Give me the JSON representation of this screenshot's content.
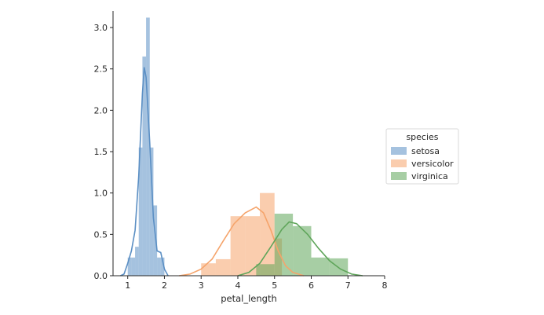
{
  "chart_data": {
    "type": "histogram",
    "xlabel": "petal_length",
    "ylabel": "",
    "xlim": [
      0.6,
      8
    ],
    "ylim": [
      0,
      3.2
    ],
    "xticks": [
      "1",
      "2",
      "3",
      "4",
      "5",
      "6",
      "7",
      "8"
    ],
    "yticks": [
      "0.0",
      "0.5",
      "1.0",
      "1.5",
      "2.0",
      "2.5",
      "3.0"
    ],
    "grid": false,
    "legend": {
      "title": "species",
      "placement": "right"
    },
    "series": [
      {
        "name": "setosa",
        "color": "#5b8fc4",
        "bins": [
          {
            "x0": 1.0,
            "x1": 1.1,
            "density": 0.22
          },
          {
            "x0": 1.1,
            "x1": 1.2,
            "density": 0.22
          },
          {
            "x0": 1.2,
            "x1": 1.3,
            "density": 0.35
          },
          {
            "x0": 1.3,
            "x1": 1.4,
            "density": 1.55
          },
          {
            "x0": 1.4,
            "x1": 1.5,
            "density": 2.65
          },
          {
            "x0": 1.5,
            "x1": 1.6,
            "density": 3.12
          },
          {
            "x0": 1.6,
            "x1": 1.7,
            "density": 1.55
          },
          {
            "x0": 1.7,
            "x1": 1.8,
            "density": 0.85
          },
          {
            "x0": 1.8,
            "x1": 1.9,
            "density": 0.22
          },
          {
            "x0": 1.9,
            "x1": 2.0,
            "density": 0.22
          }
        ],
        "kde": [
          [
            0.8,
            0.0
          ],
          [
            0.9,
            0.02
          ],
          [
            1.0,
            0.15
          ],
          [
            1.1,
            0.3
          ],
          [
            1.2,
            0.55
          ],
          [
            1.3,
            1.2
          ],
          [
            1.4,
            2.2
          ],
          [
            1.45,
            2.52
          ],
          [
            1.5,
            2.4
          ],
          [
            1.6,
            1.6
          ],
          [
            1.7,
            0.7
          ],
          [
            1.8,
            0.3
          ],
          [
            1.9,
            0.28
          ],
          [
            2.0,
            0.08
          ],
          [
            2.1,
            0.0
          ]
        ]
      },
      {
        "name": "versicolor",
        "color": "#f5a46b",
        "bins": [
          {
            "x0": 3.0,
            "x1": 3.4,
            "density": 0.15
          },
          {
            "x0": 3.4,
            "x1": 3.8,
            "density": 0.2
          },
          {
            "x0": 3.8,
            "x1": 4.2,
            "density": 0.72
          },
          {
            "x0": 4.2,
            "x1": 4.6,
            "density": 0.72
          },
          {
            "x0": 4.6,
            "x1": 5.0,
            "density": 1.0
          },
          {
            "x0": 5.0,
            "x1": 5.2,
            "density": 0.45
          }
        ],
        "kde": [
          [
            2.4,
            0.0
          ],
          [
            2.7,
            0.02
          ],
          [
            3.0,
            0.08
          ],
          [
            3.3,
            0.2
          ],
          [
            3.6,
            0.42
          ],
          [
            3.9,
            0.63
          ],
          [
            4.2,
            0.76
          ],
          [
            4.5,
            0.83
          ],
          [
            4.7,
            0.76
          ],
          [
            4.9,
            0.55
          ],
          [
            5.1,
            0.3
          ],
          [
            5.3,
            0.12
          ],
          [
            5.5,
            0.04
          ],
          [
            5.8,
            0.0
          ]
        ]
      },
      {
        "name": "virginica",
        "color": "#5fa55a",
        "bins": [
          {
            "x0": 4.5,
            "x1": 5.0,
            "density": 0.14
          },
          {
            "x0": 5.0,
            "x1": 5.5,
            "density": 0.75
          },
          {
            "x0": 5.5,
            "x1": 6.0,
            "density": 0.6
          },
          {
            "x0": 6.0,
            "x1": 6.5,
            "density": 0.22
          },
          {
            "x0": 6.5,
            "x1": 7.0,
            "density": 0.21
          }
        ],
        "kde": [
          [
            4.0,
            0.0
          ],
          [
            4.3,
            0.04
          ],
          [
            4.6,
            0.15
          ],
          [
            4.9,
            0.35
          ],
          [
            5.2,
            0.56
          ],
          [
            5.4,
            0.65
          ],
          [
            5.6,
            0.63
          ],
          [
            5.9,
            0.5
          ],
          [
            6.2,
            0.33
          ],
          [
            6.5,
            0.18
          ],
          [
            6.8,
            0.08
          ],
          [
            7.1,
            0.02
          ],
          [
            7.4,
            0.0
          ]
        ]
      }
    ]
  }
}
